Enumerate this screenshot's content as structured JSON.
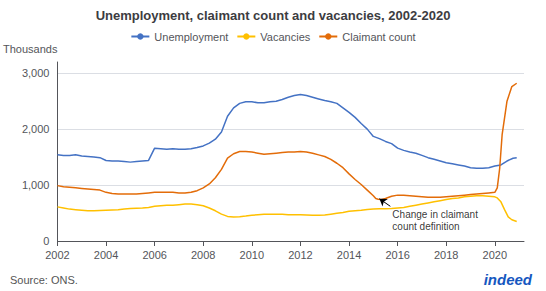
{
  "chart_data": {
    "type": "line",
    "title": "Unemployment, claimant count and vacancies, 2002-2020",
    "ylabel": "Thousands",
    "source": "Source: ONS.",
    "logo_text": "indeed",
    "logo_color": "#1557BF",
    "background_color": "#FFFFFF",
    "grid": "y",
    "legend": "top",
    "xlim": [
      2002.0,
      2021.2
    ],
    "xticks": [
      2002,
      2004,
      2006,
      2008,
      2010,
      2012,
      2014,
      2016,
      2018,
      2020
    ],
    "ylim": [
      0,
      3200
    ],
    "yticks": [
      0,
      {
        "value": 1000,
        "label": "1,000"
      },
      {
        "value": 2000,
        "label": "2,000"
      },
      {
        "value": 3000,
        "label": "3,000"
      }
    ],
    "annotations": [
      {
        "text": "Change in claimant\ncount definition",
        "x": 2015.7,
        "y": 620,
        "arrow_x": 2015.25,
        "arrow_y": 755
      }
    ],
    "series": [
      {
        "name": "Unemployment",
        "color": "#4472C4",
        "x": [
          2002.0,
          2002.25,
          2002.5,
          2002.75,
          2003.0,
          2003.25,
          2003.5,
          2003.75,
          2004.0,
          2004.25,
          2004.5,
          2004.75,
          2005.0,
          2005.25,
          2005.5,
          2005.75,
          2006.0,
          2006.25,
          2006.5,
          2006.75,
          2007.0,
          2007.25,
          2007.5,
          2007.75,
          2008.0,
          2008.25,
          2008.5,
          2008.75,
          2009.0,
          2009.25,
          2009.5,
          2009.75,
          2010.0,
          2010.25,
          2010.5,
          2010.75,
          2011.0,
          2011.25,
          2011.5,
          2011.75,
          2012.0,
          2012.25,
          2012.5,
          2012.75,
          2013.0,
          2013.25,
          2013.5,
          2013.75,
          2014.0,
          2014.25,
          2014.5,
          2014.75,
          2015.0,
          2015.25,
          2015.5,
          2015.75,
          2016.0,
          2016.25,
          2016.5,
          2016.75,
          2017.0,
          2017.25,
          2017.5,
          2017.75,
          2018.0,
          2018.25,
          2018.5,
          2018.75,
          2019.0,
          2019.25,
          2019.5,
          2019.75,
          2020.0,
          2020.25,
          2020.5,
          2020.75,
          2020.9
        ],
        "values": [
          1540,
          1530,
          1530,
          1540,
          1520,
          1510,
          1500,
          1490,
          1440,
          1430,
          1430,
          1420,
          1410,
          1420,
          1430,
          1440,
          1660,
          1650,
          1640,
          1650,
          1640,
          1640,
          1650,
          1670,
          1700,
          1750,
          1820,
          1950,
          2230,
          2380,
          2460,
          2490,
          2490,
          2470,
          2470,
          2490,
          2500,
          2530,
          2570,
          2600,
          2620,
          2600,
          2570,
          2540,
          2510,
          2490,
          2460,
          2380,
          2300,
          2210,
          2100,
          2000,
          1870,
          1830,
          1780,
          1740,
          1660,
          1620,
          1590,
          1570,
          1530,
          1490,
          1460,
          1430,
          1400,
          1380,
          1360,
          1340,
          1310,
          1300,
          1300,
          1310,
          1340,
          1360,
          1430,
          1480,
          1490
        ]
      },
      {
        "name": "Vacancies",
        "color": "#FFC000",
        "x": [
          2002.0,
          2002.25,
          2002.5,
          2002.75,
          2003.0,
          2003.25,
          2003.5,
          2003.75,
          2004.0,
          2004.25,
          2004.5,
          2004.75,
          2005.0,
          2005.25,
          2005.5,
          2005.75,
          2006.0,
          2006.25,
          2006.5,
          2006.75,
          2007.0,
          2007.25,
          2007.5,
          2007.75,
          2008.0,
          2008.25,
          2008.5,
          2008.75,
          2009.0,
          2009.25,
          2009.5,
          2009.75,
          2010.0,
          2010.25,
          2010.5,
          2010.75,
          2011.0,
          2011.25,
          2011.5,
          2011.75,
          2012.0,
          2012.25,
          2012.5,
          2012.75,
          2013.0,
          2013.25,
          2013.5,
          2013.75,
          2014.0,
          2014.25,
          2014.5,
          2014.75,
          2015.0,
          2015.25,
          2015.5,
          2015.75,
          2016.0,
          2016.25,
          2016.5,
          2016.75,
          2017.0,
          2017.25,
          2017.5,
          2017.75,
          2018.0,
          2018.25,
          2018.5,
          2018.75,
          2019.0,
          2019.25,
          2019.5,
          2019.75,
          2020.0,
          2020.1,
          2020.25,
          2020.4,
          2020.55,
          2020.7,
          2020.9
        ],
        "values": [
          610,
          590,
          570,
          560,
          550,
          540,
          540,
          545,
          550,
          555,
          560,
          570,
          580,
          585,
          590,
          600,
          620,
          630,
          640,
          640,
          650,
          660,
          660,
          650,
          630,
          590,
          540,
          480,
          440,
          430,
          435,
          445,
          460,
          470,
          480,
          480,
          480,
          480,
          470,
          470,
          470,
          465,
          460,
          460,
          465,
          480,
          495,
          510,
          530,
          540,
          550,
          565,
          570,
          575,
          575,
          580,
          590,
          600,
          620,
          640,
          660,
          680,
          700,
          720,
          740,
          760,
          770,
          790,
          800,
          810,
          810,
          800,
          790,
          770,
          700,
          560,
          430,
          380,
          350
        ]
      },
      {
        "name": "Claimant count",
        "color": "#E36C09",
        "x": [
          2002.0,
          2002.25,
          2002.5,
          2002.75,
          2003.0,
          2003.25,
          2003.5,
          2003.75,
          2004.0,
          2004.25,
          2004.5,
          2004.75,
          2005.0,
          2005.25,
          2005.5,
          2005.75,
          2006.0,
          2006.25,
          2006.5,
          2006.75,
          2007.0,
          2007.25,
          2007.5,
          2007.75,
          2008.0,
          2008.25,
          2008.5,
          2008.75,
          2009.0,
          2009.25,
          2009.5,
          2009.75,
          2010.0,
          2010.25,
          2010.5,
          2010.75,
          2011.0,
          2011.25,
          2011.5,
          2011.75,
          2012.0,
          2012.25,
          2012.5,
          2012.75,
          2013.0,
          2013.25,
          2013.5,
          2013.75,
          2014.0,
          2014.25,
          2014.5,
          2014.75,
          2015.0,
          2015.1,
          2015.2,
          2015.3,
          2015.5,
          2015.75,
          2016.0,
          2016.25,
          2016.5,
          2016.75,
          2017.0,
          2017.25,
          2017.5,
          2017.75,
          2018.0,
          2018.25,
          2018.5,
          2018.75,
          2019.0,
          2019.25,
          2019.5,
          2019.75,
          2020.0,
          2020.1,
          2020.2,
          2020.3,
          2020.5,
          2020.7,
          2020.9
        ],
        "values": [
          990,
          970,
          960,
          950,
          940,
          930,
          920,
          910,
          870,
          850,
          840,
          840,
          840,
          840,
          850,
          860,
          870,
          870,
          870,
          870,
          860,
          860,
          870,
          900,
          950,
          1020,
          1130,
          1280,
          1480,
          1560,
          1600,
          1600,
          1590,
          1570,
          1550,
          1560,
          1570,
          1580,
          1590,
          1590,
          1600,
          1590,
          1570,
          1540,
          1510,
          1460,
          1390,
          1310,
          1200,
          1100,
          1010,
          910,
          810,
          760,
          745,
          740,
          760,
          800,
          820,
          820,
          810,
          800,
          790,
          780,
          780,
          780,
          790,
          800,
          810,
          820,
          830,
          840,
          850,
          860,
          870,
          950,
          1300,
          1900,
          2500,
          2760,
          2820
        ]
      }
    ]
  }
}
